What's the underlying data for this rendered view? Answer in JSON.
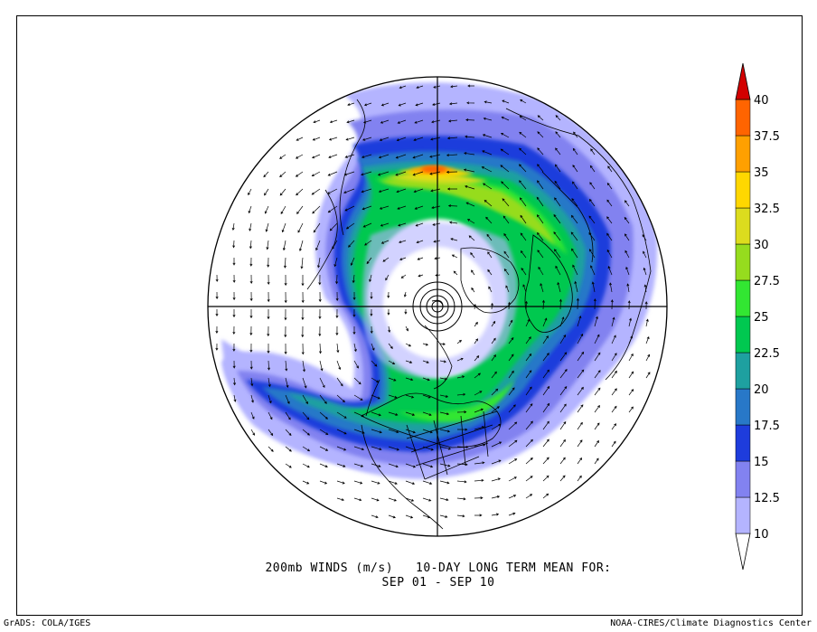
{
  "title": {
    "line1": "200mb WINDS (m/s)   10-DAY LONG TERM MEAN FOR:",
    "line2": "SEP 01 - SEP 10"
  },
  "footer": {
    "left": "GrADS: COLA/IGES",
    "right": "NOAA-CIRES/Climate Diagnostics Center"
  },
  "colorbar": {
    "labels": [
      "10",
      "12.5",
      "15",
      "17.5",
      "20",
      "22.5",
      "25",
      "27.5",
      "30",
      "32.5",
      "35",
      "37.5",
      "40"
    ],
    "colors": [
      "#ffffff",
      "#b4b4ff",
      "#8282f0",
      "#1e3cdc",
      "#2878c8",
      "#1ea0a0",
      "#00c850",
      "#32e632",
      "#96dc1e",
      "#dcdc1e",
      "#ffd700",
      "#ffa000",
      "#ff6400",
      "#d20000"
    ]
  },
  "map": {
    "projection": "north polar stereographic",
    "field": "200mb wind speed and direction",
    "jet_core_max": 35
  }
}
